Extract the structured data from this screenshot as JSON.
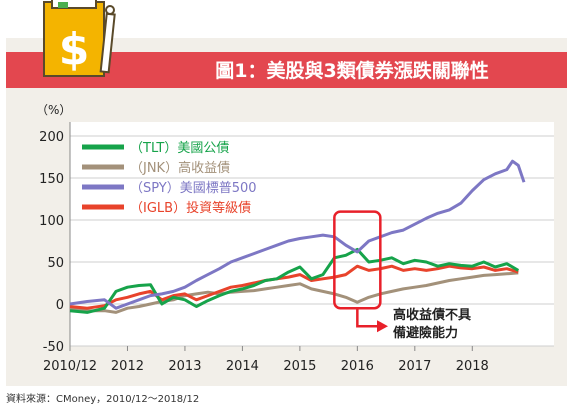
{
  "header": {
    "title": "圖1：美股與3類債券漲跌關聯性"
  },
  "source_note": "資料來源：CMoney，2010/12～2018/12",
  "annotation": {
    "line1": "高收益債不具",
    "line2": "備避險能力"
  },
  "colors": {
    "banner": "#e3474f",
    "plot_background": "#ffffff",
    "panel_background": "#f2efe9",
    "tlt": "#16a34a",
    "jnk": "#a3917a",
    "spy": "#7d77c4",
    "iglb": "#e8432b",
    "highlight": "#e8202a",
    "icon_yellow": "#f4b400",
    "icon_green": "#4caf50"
  },
  "chart_data": {
    "type": "line",
    "title": "圖1：美股與3類債券漲跌關聯性",
    "ylabel": "（%）",
    "xlabel": "",
    "ylim": [
      -50,
      200
    ],
    "xlim": [
      0,
      7.9
    ],
    "yticks": [
      -50,
      0,
      50,
      100,
      150,
      200
    ],
    "xtick_labels": [
      "2010/12",
      "2012",
      "2013",
      "2014",
      "2015",
      "2016",
      "2017",
      "2018"
    ],
    "xtick_positions": [
      0,
      1,
      2,
      3,
      4,
      5,
      6,
      7
    ],
    "grid": "horizontal",
    "legend_position": "top-left",
    "series": [
      {
        "name": "（TLT）美國公債",
        "key": "tlt",
        "x": [
          0,
          0.3,
          0.6,
          0.8,
          1.0,
          1.2,
          1.4,
          1.6,
          1.8,
          2.0,
          2.2,
          2.4,
          2.6,
          2.8,
          3.0,
          3.2,
          3.4,
          3.6,
          3.8,
          4.0,
          4.2,
          4.4,
          4.6,
          4.8,
          5.0,
          5.2,
          5.4,
          5.6,
          5.8,
          6.0,
          6.2,
          6.4,
          6.6,
          6.8,
          7.0,
          7.2,
          7.4,
          7.6,
          7.8
        ],
        "y": [
          -8,
          -10,
          -5,
          15,
          20,
          22,
          23,
          0,
          8,
          5,
          -3,
          4,
          10,
          15,
          18,
          22,
          28,
          30,
          38,
          44,
          30,
          35,
          55,
          58,
          65,
          50,
          52,
          55,
          48,
          52,
          50,
          45,
          48,
          46,
          45,
          50,
          44,
          48,
          40
        ]
      },
      {
        "name": "（JNK）高收益債",
        "key": "jnk",
        "x": [
          0,
          0.3,
          0.6,
          0.8,
          1.0,
          1.2,
          1.4,
          1.6,
          1.8,
          2.0,
          2.2,
          2.4,
          2.6,
          2.8,
          3.0,
          3.2,
          3.4,
          3.6,
          3.8,
          4.0,
          4.2,
          4.4,
          4.6,
          4.8,
          5.0,
          5.2,
          5.4,
          5.6,
          5.8,
          6.0,
          6.2,
          6.4,
          6.6,
          6.8,
          7.0,
          7.2,
          7.4,
          7.6,
          7.8
        ],
        "y": [
          -5,
          -8,
          -8,
          -10,
          -5,
          -3,
          0,
          3,
          5,
          10,
          12,
          14,
          12,
          14,
          15,
          16,
          18,
          20,
          22,
          24,
          18,
          15,
          12,
          8,
          2,
          8,
          12,
          15,
          18,
          20,
          22,
          25,
          28,
          30,
          32,
          34,
          35,
          36,
          37
        ]
      },
      {
        "name": "（SPY）美國標普500",
        "key": "spy",
        "x": [
          0,
          0.3,
          0.6,
          0.8,
          1.0,
          1.2,
          1.4,
          1.6,
          1.8,
          2.0,
          2.2,
          2.4,
          2.6,
          2.8,
          3.0,
          3.2,
          3.4,
          3.6,
          3.8,
          4.0,
          4.2,
          4.4,
          4.6,
          4.8,
          5.0,
          5.2,
          5.4,
          5.6,
          5.8,
          6.0,
          6.2,
          6.4,
          6.6,
          6.8,
          7.0,
          7.2,
          7.4,
          7.6,
          7.7,
          7.8,
          7.9
        ],
        "y": [
          0,
          3,
          5,
          -5,
          0,
          5,
          10,
          12,
          15,
          20,
          28,
          35,
          42,
          50,
          55,
          60,
          65,
          70,
          75,
          78,
          80,
          82,
          80,
          70,
          62,
          75,
          80,
          85,
          88,
          95,
          102,
          108,
          112,
          120,
          135,
          148,
          155,
          160,
          170,
          165,
          145
        ]
      },
      {
        "name": "（IGLB）投資等級債",
        "key": "iglb",
        "x": [
          0,
          0.3,
          0.6,
          0.8,
          1.0,
          1.2,
          1.4,
          1.6,
          1.8,
          2.0,
          2.2,
          2.4,
          2.6,
          2.8,
          3.0,
          3.2,
          3.4,
          3.6,
          3.8,
          4.0,
          4.2,
          4.4,
          4.6,
          4.8,
          5.0,
          5.2,
          5.4,
          5.6,
          5.8,
          6.0,
          6.2,
          6.4,
          6.6,
          6.8,
          7.0,
          7.2,
          7.4,
          7.6,
          7.8
        ],
        "y": [
          -3,
          -5,
          -2,
          5,
          8,
          12,
          15,
          5,
          10,
          12,
          5,
          10,
          15,
          20,
          22,
          25,
          28,
          30,
          32,
          35,
          28,
          30,
          32,
          35,
          45,
          40,
          42,
          45,
          40,
          42,
          40,
          42,
          45,
          43,
          42,
          44,
          40,
          42,
          38
        ]
      }
    ]
  }
}
